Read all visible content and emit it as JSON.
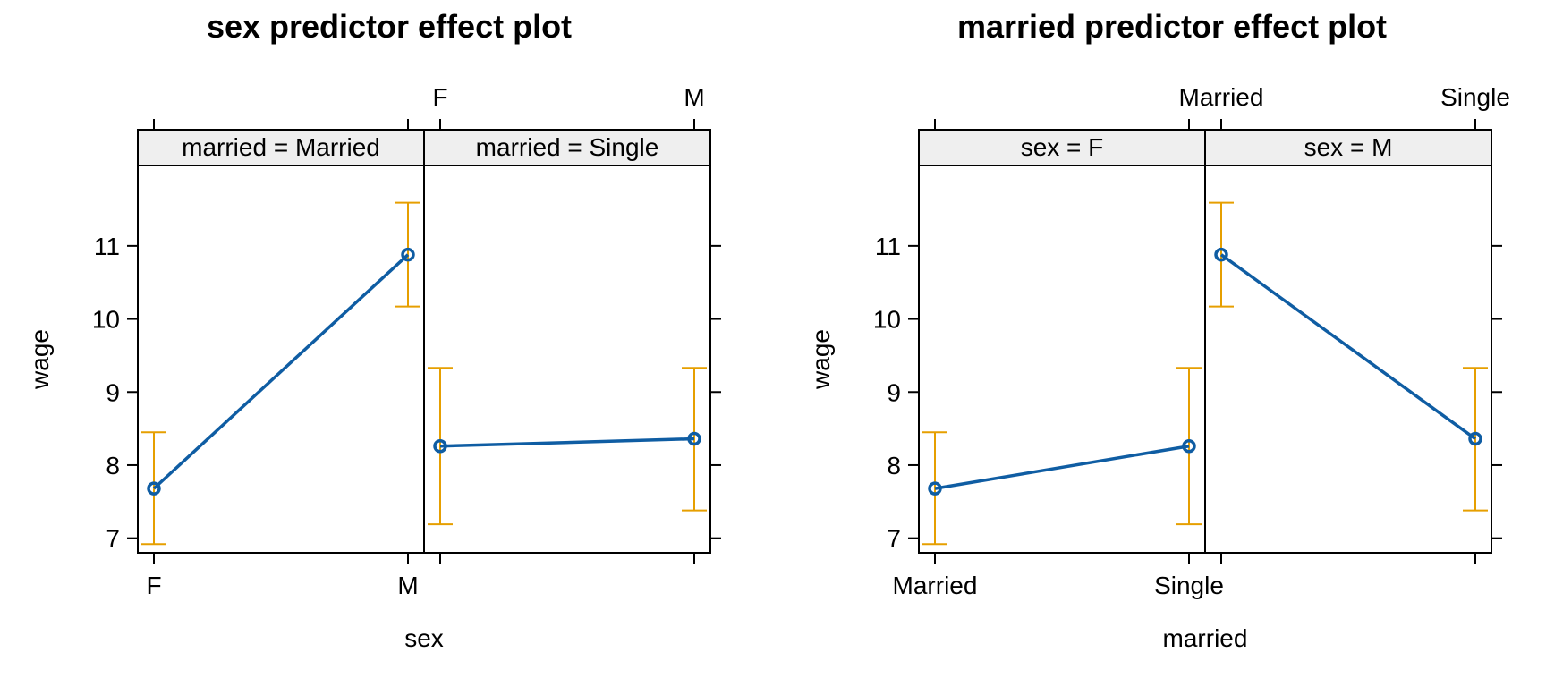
{
  "chart_data": [
    {
      "type": "line",
      "title": "sex predictor effect plot",
      "xlabel": "sex",
      "ylabel": "wage",
      "x_categories": [
        "F",
        "M"
      ],
      "ylim": [
        6.8,
        12.1
      ],
      "yticks": [
        7,
        8,
        9,
        10,
        11
      ],
      "panel_variable": "married",
      "panels": [
        {
          "strip": "married = Married",
          "series": [
            {
              "x": "F",
              "y": 7.68,
              "lower": 6.92,
              "upper": 8.45
            },
            {
              "x": "M",
              "y": 10.88,
              "lower": 10.17,
              "upper": 11.59
            }
          ]
        },
        {
          "strip": "married = Single",
          "series": [
            {
              "x": "F",
              "y": 8.26,
              "lower": 7.19,
              "upper": 9.33
            },
            {
              "x": "M",
              "y": 8.36,
              "lower": 7.38,
              "upper": 9.33
            }
          ]
        }
      ],
      "line_color": "#0f5da3",
      "ci_color": "#e69f00",
      "strip_bg": "#efefef"
    },
    {
      "type": "line",
      "title": "married predictor effect plot",
      "xlabel": "married",
      "ylabel": "wage",
      "x_categories": [
        "Married",
        "Single"
      ],
      "ylim": [
        6.8,
        12.1
      ],
      "yticks": [
        7,
        8,
        9,
        10,
        11
      ],
      "panel_variable": "sex",
      "panels": [
        {
          "strip": "sex = F",
          "series": [
            {
              "x": "Married",
              "y": 7.68,
              "lower": 6.92,
              "upper": 8.45
            },
            {
              "x": "Single",
              "y": 8.26,
              "lower": 7.19,
              "upper": 9.33
            }
          ]
        },
        {
          "strip": "sex = M",
          "series": [
            {
              "x": "Married",
              "y": 10.88,
              "lower": 10.17,
              "upper": 11.59
            },
            {
              "x": "Single",
              "y": 8.36,
              "lower": 7.38,
              "upper": 9.33
            }
          ]
        }
      ],
      "line_color": "#0f5da3",
      "ci_color": "#e69f00",
      "strip_bg": "#efefef"
    }
  ]
}
